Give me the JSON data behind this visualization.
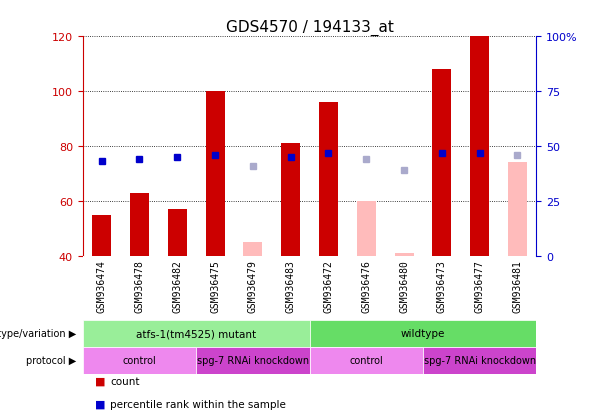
{
  "title": "GDS4570 / 194133_at",
  "samples": [
    "GSM936474",
    "GSM936478",
    "GSM936482",
    "GSM936475",
    "GSM936479",
    "GSM936483",
    "GSM936472",
    "GSM936476",
    "GSM936480",
    "GSM936473",
    "GSM936477",
    "GSM936481"
  ],
  "count_values": [
    55,
    63,
    57,
    100,
    null,
    81,
    96,
    null,
    null,
    108,
    120,
    null
  ],
  "count_absent_values": [
    null,
    null,
    null,
    null,
    45,
    null,
    null,
    60,
    41,
    null,
    null,
    74
  ],
  "rank_values": [
    43,
    44,
    45,
    46,
    null,
    45,
    47,
    null,
    null,
    47,
    47,
    null
  ],
  "rank_absent_values": [
    null,
    null,
    null,
    null,
    41,
    null,
    null,
    44,
    39,
    null,
    null,
    46
  ],
  "ylim_left": [
    40,
    120
  ],
  "ylim_right": [
    0,
    100
  ],
  "left_ticks": [
    40,
    60,
    80,
    100,
    120
  ],
  "right_ticks": [
    0,
    25,
    50,
    75,
    100
  ],
  "right_tick_labels": [
    "0",
    "25",
    "50",
    "75",
    "100%"
  ],
  "bar_width": 0.5,
  "color_count": "#cc0000",
  "color_rank": "#0000cc",
  "color_count_absent": "#ffbbbb",
  "color_rank_absent": "#aaaacc",
  "genotype_groups": [
    {
      "label": "atfs-1(tm4525) mutant",
      "start": 0,
      "end": 6,
      "color": "#99ee99"
    },
    {
      "label": "wildtype",
      "start": 6,
      "end": 12,
      "color": "#66dd66"
    }
  ],
  "protocol_groups": [
    {
      "label": "control",
      "start": 0,
      "end": 3,
      "color": "#ee88ee"
    },
    {
      "label": "spg-7 RNAi knockdown",
      "start": 3,
      "end": 6,
      "color": "#cc44cc"
    },
    {
      "label": "control",
      "start": 6,
      "end": 9,
      "color": "#ee88ee"
    },
    {
      "label": "spg-7 RNAi knockdown",
      "start": 9,
      "end": 12,
      "color": "#cc44cc"
    }
  ],
  "left_axis_color": "#cc0000",
  "right_axis_color": "#0000cc",
  "background_color": "#ffffff",
  "label_fontsize": 7.5,
  "title_fontsize": 11,
  "tick_fontsize": 8,
  "sample_fontsize": 7,
  "legend_fontsize": 8
}
